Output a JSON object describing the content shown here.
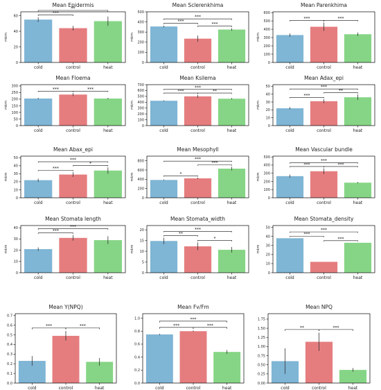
{
  "colors": {
    "cold": "#7fb5d5",
    "control": "#e57d7f",
    "heat": "#86d586",
    "sig_line": "#111111",
    "axis": "#000000"
  },
  "chart_data": [
    {
      "type": "bar",
      "title": "Mean Epidermis",
      "ylabel": "mkm",
      "categories": [
        "cold",
        "control",
        "heat"
      ],
      "values": [
        55,
        44,
        53
      ],
      "errors": [
        3,
        3,
        6
      ],
      "ylim": [
        0,
        65
      ],
      "yticks": [
        "0",
        "20",
        "40",
        "60"
      ],
      "significance": [
        {
          "from": "cold",
          "to": "control",
          "label": "***"
        },
        {
          "from": "cold",
          "to": "heat",
          "label": "**"
        }
      ]
    },
    {
      "type": "bar",
      "title": "Mean Sclerenkhima",
      "ylabel": "mkm",
      "categories": [
        "cold",
        "control",
        "heat"
      ],
      "values": [
        355,
        235,
        325
      ],
      "errors": [
        8,
        30,
        12
      ],
      "ylim": [
        0,
        500
      ],
      "yticks": [
        "0",
        "100",
        "200",
        "300",
        "400",
        "500"
      ],
      "significance": [
        {
          "from": "cold",
          "to": "control",
          "label": "***"
        },
        {
          "from": "control",
          "to": "heat",
          "label": "***"
        },
        {
          "from": "cold",
          "to": "heat",
          "label": "***"
        }
      ]
    },
    {
      "type": "bar",
      "title": "Mean Parenkhima",
      "ylabel": "mkm",
      "categories": [
        "cold",
        "control",
        "heat"
      ],
      "values": [
        330,
        430,
        340
      ],
      "errors": [
        20,
        50,
        20
      ],
      "ylim": [
        0,
        610
      ],
      "yticks": [
        "0",
        "100",
        "200",
        "300",
        "400",
        "500",
        "600"
      ],
      "significance": [
        {
          "from": "cold",
          "to": "control",
          "label": "***"
        },
        {
          "from": "control",
          "to": "heat",
          "label": "***"
        }
      ]
    },
    {
      "type": "bar",
      "title": "Mean Floema",
      "ylabel": "mkm",
      "categories": [
        "cold",
        "control",
        "heat"
      ],
      "values": [
        205,
        235,
        205
      ],
      "errors": [
        5,
        12,
        5
      ],
      "ylim": [
        0,
        310
      ],
      "yticks": [
        "0",
        "50",
        "100",
        "150",
        "200",
        "250",
        "300"
      ],
      "significance": [
        {
          "from": "cold",
          "to": "control",
          "label": "***"
        },
        {
          "from": "control",
          "to": "heat",
          "label": "***"
        }
      ]
    },
    {
      "type": "bar",
      "title": "Mean Ksilema",
      "ylabel": "mkm",
      "categories": [
        "cold",
        "control",
        "heat"
      ],
      "values": [
        425,
        500,
        460
      ],
      "errors": [
        8,
        25,
        12
      ],
      "ylim": [
        0,
        700
      ],
      "yticks": [
        "0",
        "100",
        "200",
        "300",
        "400",
        "500",
        "600",
        "700"
      ],
      "significance": [
        {
          "from": "cold",
          "to": "control",
          "label": "***"
        },
        {
          "from": "control",
          "to": "heat",
          "label": "**"
        },
        {
          "from": "cold",
          "to": "heat",
          "label": "***"
        }
      ]
    },
    {
      "type": "bar",
      "title": "Mean Adax_epi",
      "ylabel": "mkm",
      "categories": [
        "cold",
        "control",
        "heat"
      ],
      "values": [
        22,
        31,
        36
      ],
      "errors": [
        1.5,
        2.5,
        3.5
      ],
      "ylim": [
        0,
        52
      ],
      "yticks": [
        "0",
        "10",
        "20",
        "30",
        "40",
        "50"
      ],
      "significance": [
        {
          "from": "cold",
          "to": "control",
          "label": "***"
        },
        {
          "from": "control",
          "to": "heat",
          "label": "**"
        },
        {
          "from": "cold",
          "to": "heat",
          "label": "***"
        }
      ]
    },
    {
      "type": "bar",
      "title": "Mean Abax_epi",
      "ylabel": "mkm",
      "categories": [
        "cold",
        "control",
        "heat"
      ],
      "values": [
        22,
        29,
        34
      ],
      "errors": [
        2,
        3,
        4
      ],
      "ylim": [
        0,
        52
      ],
      "yticks": [
        "0",
        "10",
        "20",
        "30",
        "40",
        "50"
      ],
      "significance": [
        {
          "from": "cold",
          "to": "control",
          "label": "***"
        },
        {
          "from": "control",
          "to": "heat",
          "label": "*"
        },
        {
          "from": "cold",
          "to": "heat",
          "label": "***"
        }
      ]
    },
    {
      "type": "bar",
      "title": "Mean Mesophyll",
      "ylabel": "mkm",
      "categories": [
        "cold",
        "control",
        "heat"
      ],
      "values": [
        385,
        420,
        630
      ],
      "errors": [
        10,
        15,
        40
      ],
      "ylim": [
        0,
        900
      ],
      "yticks": [
        "0",
        "200",
        "400",
        "600",
        "800"
      ],
      "significance": [
        {
          "from": "cold",
          "to": "control",
          "label": "*"
        },
        {
          "from": "control",
          "to": "heat",
          "label": "***"
        },
        {
          "from": "cold",
          "to": "heat",
          "label": "***"
        }
      ]
    },
    {
      "type": "bar",
      "title": "Mean Vascular bundle",
      "ylabel": "mkm",
      "categories": [
        "cold",
        "control",
        "heat"
      ],
      "values": [
        265,
        325,
        185
      ],
      "errors": [
        20,
        35,
        8
      ],
      "ylim": [
        0,
        510
      ],
      "yticks": [
        "0",
        "100",
        "200",
        "300",
        "400",
        "500"
      ],
      "significance": [
        {
          "from": "cold",
          "to": "control",
          "label": "***"
        },
        {
          "from": "control",
          "to": "heat",
          "label": "***"
        },
        {
          "from": "cold",
          "to": "heat",
          "label": "***"
        }
      ]
    },
    {
      "type": "bar",
      "title": "Mean Stomata length",
      "ylabel": "mkm",
      "categories": [
        "cold",
        "control",
        "heat"
      ],
      "values": [
        21,
        31,
        29
      ],
      "errors": [
        1.5,
        2.5,
        3.5
      ],
      "ylim": [
        0,
        42
      ],
      "yticks": [
        "0",
        "10",
        "20",
        "30",
        "40"
      ],
      "significance": [
        {
          "from": "cold",
          "to": "control",
          "label": "***"
        },
        {
          "from": "cold",
          "to": "heat",
          "label": "***"
        }
      ]
    },
    {
      "type": "bar",
      "title": "Mean Stomata_width",
      "ylabel": "mkm",
      "categories": [
        "cold",
        "control",
        "heat"
      ],
      "values": [
        14.8,
        12.3,
        10.7
      ],
      "errors": [
        1.5,
        1.8,
        1.3
      ],
      "ylim": [
        0,
        22
      ],
      "yticks": [
        "0",
        "5",
        "10",
        "15",
        "20"
      ],
      "significance": [
        {
          "from": "cold",
          "to": "control",
          "label": "**"
        },
        {
          "from": "control",
          "to": "heat",
          "label": "*"
        },
        {
          "from": "cold",
          "to": "heat",
          "label": "***"
        }
      ]
    },
    {
      "type": "bar",
      "title": "Mean Stomata_density",
      "ylabel": "mkm",
      "categories": [
        "cold",
        "control",
        "heat"
      ],
      "values": [
        38,
        12,
        33
      ],
      "errors": [
        0,
        0,
        0
      ],
      "ylim": [
        0,
        52
      ],
      "yticks": [
        "0",
        "10",
        "20",
        "30",
        "40",
        "50"
      ],
      "significance": [
        {
          "from": "cold",
          "to": "control",
          "label": "***"
        },
        {
          "from": "control",
          "to": "heat",
          "label": "***"
        },
        {
          "from": "cold",
          "to": "heat",
          "label": "***"
        }
      ]
    },
    {
      "type": "bar",
      "title": "Mean Y(NPQ)",
      "ylabel": "",
      "categories": [
        "cold",
        "control",
        "heat"
      ],
      "values": [
        0.23,
        0.49,
        0.22
      ],
      "errors": [
        0.05,
        0.05,
        0.04
      ],
      "ylim": [
        0,
        0.72
      ],
      "yticks": [
        "0.0",
        "0.1",
        "0.2",
        "0.3",
        "0.4",
        "0.5",
        "0.6",
        "0.7"
      ],
      "significance": [
        {
          "from": "cold",
          "to": "control",
          "label": "***"
        },
        {
          "from": "control",
          "to": "heat",
          "label": "***"
        }
      ]
    },
    {
      "type": "bar",
      "title": "Mean Fv/Fm",
      "ylabel": "",
      "categories": [
        "cold",
        "control",
        "heat"
      ],
      "values": [
        0.75,
        0.8,
        0.48
      ],
      "errors": [
        0.01,
        0.01,
        0.03
      ],
      "ylim": [
        0,
        1.07
      ],
      "yticks": [
        "0.0",
        "0.2",
        "0.4",
        "0.6",
        "0.8",
        "1.0"
      ],
      "significance": [
        {
          "from": "cold",
          "to": "control",
          "label": "***"
        },
        {
          "from": "control",
          "to": "heat",
          "label": "***"
        },
        {
          "from": "cold",
          "to": "heat",
          "label": "***"
        }
      ]
    },
    {
      "type": "bar",
      "title": "Mean NPQ",
      "ylabel": "",
      "categories": [
        "cold",
        "control",
        "heat"
      ],
      "values": [
        0.6,
        1.13,
        0.36
      ],
      "errors": [
        0.35,
        0.25,
        0.05
      ],
      "ylim": [
        0,
        1.9
      ],
      "yticks": [
        "0.00",
        "0.25",
        "0.50",
        "0.75",
        "1.00",
        "1.25",
        "1.50",
        "1.75"
      ],
      "significance": [
        {
          "from": "cold",
          "to": "control",
          "label": "**"
        },
        {
          "from": "control",
          "to": "heat",
          "label": "***"
        }
      ]
    }
  ]
}
